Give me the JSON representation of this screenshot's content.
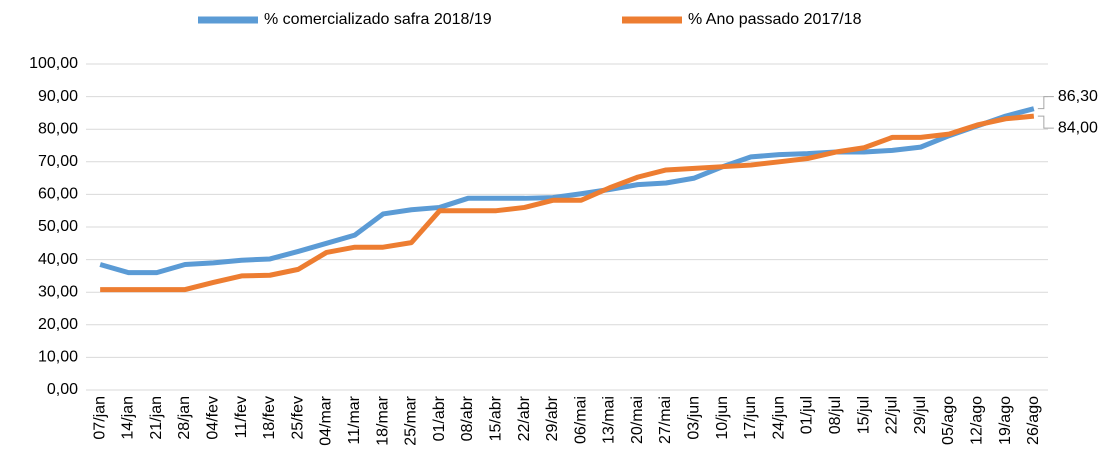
{
  "chart_data": {
    "type": "line",
    "categories": [
      "07/jan",
      "14/jan",
      "21/jan",
      "28/jan",
      "04/fev",
      "11/fev",
      "18/fev",
      "25/fev",
      "04/mar",
      "11/mar",
      "18/mar",
      "25/mar",
      "01/abr",
      "08/abr",
      "15/abr",
      "22/abr",
      "29/abr",
      "06/mai",
      "13/mai",
      "20/mai",
      "27/mai",
      "03/jun",
      "10/jun",
      "17/jun",
      "24/jun",
      "01/jul",
      "08/jul",
      "15/jul",
      "22/jul",
      "29/jul",
      "05/ago",
      "12/ago",
      "19/ago",
      "26/ago"
    ],
    "series": [
      {
        "name": "% comercializado safra 2018/19",
        "color": "#5b9bd5",
        "values": [
          38.5,
          36,
          36,
          38.5,
          39,
          39.8,
          40.2,
          42.5,
          45,
          47.5,
          54,
          55.3,
          56,
          58.8,
          58.8,
          58.8,
          59,
          60.2,
          61.5,
          63,
          63.5,
          65,
          68.5,
          71.5,
          72.2,
          72.5,
          73,
          73,
          73.5,
          74.5,
          78,
          81,
          84,
          86.3
        ],
        "value_labels": [
          null,
          null,
          null,
          null,
          null,
          null,
          null,
          null,
          null,
          null,
          null,
          null,
          null,
          null,
          null,
          null,
          null,
          null,
          null,
          null,
          null,
          null,
          null,
          null,
          null,
          null,
          null,
          null,
          null,
          null,
          null,
          null,
          null,
          "86,30"
        ]
      },
      {
        "name": "% Ano passado 2017/18",
        "color": "#ed7d31",
        "values": [
          30.8,
          30.8,
          30.8,
          30.8,
          33,
          35,
          35.2,
          37,
          42.2,
          43.8,
          43.8,
          45.2,
          55,
          55,
          55,
          56,
          58.2,
          58.2,
          62,
          65.3,
          67.5,
          68,
          68.5,
          69,
          70,
          71,
          73,
          74.3,
          77.5,
          77.5,
          78.5,
          81.3,
          83.2,
          84
        ],
        "value_labels": [
          null,
          null,
          null,
          null,
          null,
          null,
          null,
          null,
          null,
          null,
          null,
          null,
          null,
          null,
          null,
          null,
          null,
          null,
          null,
          null,
          null,
          null,
          null,
          null,
          null,
          null,
          null,
          null,
          null,
          null,
          null,
          null,
          null,
          "84,00"
        ]
      }
    ],
    "ylim": [
      0,
      100
    ],
    "yticks": [
      {
        "value": 0,
        "label": "0,00"
      },
      {
        "value": 10,
        "label": "10,00"
      },
      {
        "value": 20,
        "label": "20,00"
      },
      {
        "value": 30,
        "label": "30,00"
      },
      {
        "value": 40,
        "label": "40,00"
      },
      {
        "value": 50,
        "label": "50,00"
      },
      {
        "value": 60,
        "label": "60,00"
      },
      {
        "value": 70,
        "label": "70,00"
      },
      {
        "value": 80,
        "label": "80,00"
      },
      {
        "value": 90,
        "label": "90,00"
      },
      {
        "value": 100,
        "label": "100,00"
      }
    ],
    "grid": true,
    "legend": "top"
  }
}
